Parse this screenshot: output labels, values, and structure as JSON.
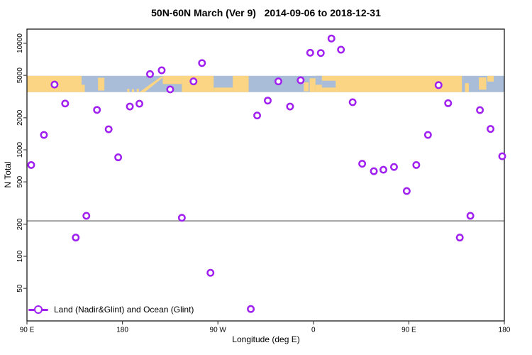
{
  "title": "50N-60N March (Ver 9)   2014-09-06 to 2018-12-31",
  "chart_data": {
    "type": "scatter",
    "title": "50N-60N March (Ver 9)   2014-09-06 to 2018-12-31",
    "xlabel": "Longitude (deg E)",
    "ylabel": "N Total",
    "x_axis": {
      "min": 90,
      "max": 540,
      "ticks": [
        {
          "value": 90,
          "label": "90 E"
        },
        {
          "value": 180,
          "label": "180"
        },
        {
          "value": 270,
          "label": "90 W"
        },
        {
          "value": 360,
          "label": "0"
        },
        {
          "value": 450,
          "label": "90 E"
        },
        {
          "value": 540,
          "label": "180"
        }
      ]
    },
    "y_axis": {
      "scale": "log",
      "min": 28,
      "max": 12000,
      "ticks": [
        {
          "value": 10000,
          "label": "10000"
        },
        {
          "value": 5000,
          "label": "5000"
        },
        {
          "value": 2000,
          "label": "2000"
        },
        {
          "value": 1000,
          "label": "1000"
        },
        {
          "value": 500,
          "label": "500"
        },
        {
          "value": 200,
          "label": "200"
        },
        {
          "value": 100,
          "label": "100"
        },
        {
          "value": 50,
          "label": "50"
        }
      ]
    },
    "grid": "off",
    "threshold_line": {
      "value": 215,
      "color": "#808080"
    },
    "map_band": {
      "description": "world coastline strip for 50N-60N drawn across the plot",
      "value_top": 4950,
      "value_bottom": 3480,
      "ocean_color": "#a9bdd8",
      "land_color": "#fbd583",
      "land_segments": [
        {
          "fill": "land",
          "from": 90,
          "to": 141.5,
          "top": 0,
          "bottom": 1
        },
        {
          "fill": "land",
          "from": 141.5,
          "to": 144.5,
          "top": 0.55,
          "bottom": 1
        },
        {
          "fill": "land",
          "from": 157,
          "to": 163,
          "top": 0.12,
          "bottom": 0.9
        },
        {
          "fill": "land",
          "from": 184.5,
          "to": 186.5,
          "top": 0.8,
          "bottom": 1
        },
        {
          "fill": "land",
          "from": 189,
          "to": 191,
          "top": 0.82,
          "bottom": 1
        },
        {
          "fill": "land",
          "from": 193.5,
          "to": 195.5,
          "top": 0.8,
          "bottom": 1
        },
        {
          "fill": "land",
          "shape": "diagonal",
          "from": 196,
          "to": 219,
          "top": 0,
          "bottom": 1
        },
        {
          "fill": "land",
          "from": 218,
          "to": 236,
          "top": 0,
          "bottom": 0.5
        },
        {
          "fill": "land",
          "from": 236,
          "to": 266,
          "top": 0,
          "bottom": 1
        },
        {
          "fill": "land",
          "from": 266,
          "to": 284,
          "top": 0.72,
          "bottom": 1
        },
        {
          "fill": "land",
          "from": 284,
          "to": 299,
          "top": 0,
          "bottom": 1
        },
        {
          "fill": "land",
          "from": 351,
          "to": 355.5,
          "top": 0.4,
          "bottom": 0.95
        },
        {
          "fill": "land",
          "from": 356.5,
          "to": 362,
          "top": 0.15,
          "bottom": 1
        },
        {
          "fill": "land",
          "from": 362,
          "to": 500,
          "top": 0,
          "bottom": 1
        },
        {
          "fill": "ocean",
          "from": 362,
          "to": 368,
          "top": 0,
          "bottom": 0.55
        },
        {
          "fill": "ocean",
          "from": 368,
          "to": 381,
          "top": 0.3,
          "bottom": 0.72
        },
        {
          "fill": "land",
          "from": 503,
          "to": 506.5,
          "top": 0.45,
          "bottom": 1
        },
        {
          "fill": "land",
          "from": 516,
          "to": 523,
          "top": 0.1,
          "bottom": 0.85
        },
        {
          "fill": "land",
          "from": 524,
          "to": 530,
          "top": 0,
          "bottom": 0.35
        }
      ]
    },
    "legend": {
      "label": "Land (Nadir&Glint) and Ocean (Glint)",
      "position": "bottom-left",
      "marker": "open-circle-on-line",
      "color": "#a020f0"
    },
    "series": [
      {
        "name": "Land (Nadir&Glint) and Ocean (Glint)",
        "marker": "open-circle",
        "color": "#a020f0",
        "points": [
          {
            "lon": 94,
            "n": 720
          },
          {
            "lon": 106,
            "n": 1380
          },
          {
            "lon": 116,
            "n": 4100
          },
          {
            "lon": 126,
            "n": 2720
          },
          {
            "lon": 136,
            "n": 150
          },
          {
            "lon": 146,
            "n": 240
          },
          {
            "lon": 156,
            "n": 2370
          },
          {
            "lon": 167,
            "n": 1560
          },
          {
            "lon": 176,
            "n": 850
          },
          {
            "lon": 187,
            "n": 2550
          },
          {
            "lon": 196,
            "n": 2710
          },
          {
            "lon": 206,
            "n": 5140
          },
          {
            "lon": 217,
            "n": 5580
          },
          {
            "lon": 225,
            "n": 3690
          },
          {
            "lon": 236,
            "n": 230
          },
          {
            "lon": 247,
            "n": 4390
          },
          {
            "lon": 255,
            "n": 6530
          },
          {
            "lon": 263,
            "n": 70
          },
          {
            "lon": 301,
            "n": 32
          },
          {
            "lon": 307,
            "n": 2100
          },
          {
            "lon": 317,
            "n": 2900
          },
          {
            "lon": 327,
            "n": 4390
          },
          {
            "lon": 338,
            "n": 2550
          },
          {
            "lon": 348,
            "n": 4500
          },
          {
            "lon": 357,
            "n": 8150
          },
          {
            "lon": 367,
            "n": 8110
          },
          {
            "lon": 377,
            "n": 11090
          },
          {
            "lon": 386,
            "n": 8710
          },
          {
            "lon": 397,
            "n": 2800
          },
          {
            "lon": 406,
            "n": 740
          },
          {
            "lon": 417,
            "n": 630
          },
          {
            "lon": 426,
            "n": 650
          },
          {
            "lon": 436,
            "n": 690
          },
          {
            "lon": 448,
            "n": 410
          },
          {
            "lon": 457,
            "n": 720
          },
          {
            "lon": 468,
            "n": 1380
          },
          {
            "lon": 478,
            "n": 4050
          },
          {
            "lon": 487,
            "n": 2740
          },
          {
            "lon": 498,
            "n": 150
          },
          {
            "lon": 508,
            "n": 240
          },
          {
            "lon": 517,
            "n": 2360
          },
          {
            "lon": 527,
            "n": 1570
          },
          {
            "lon": 538,
            "n": 870
          }
        ]
      }
    ]
  }
}
